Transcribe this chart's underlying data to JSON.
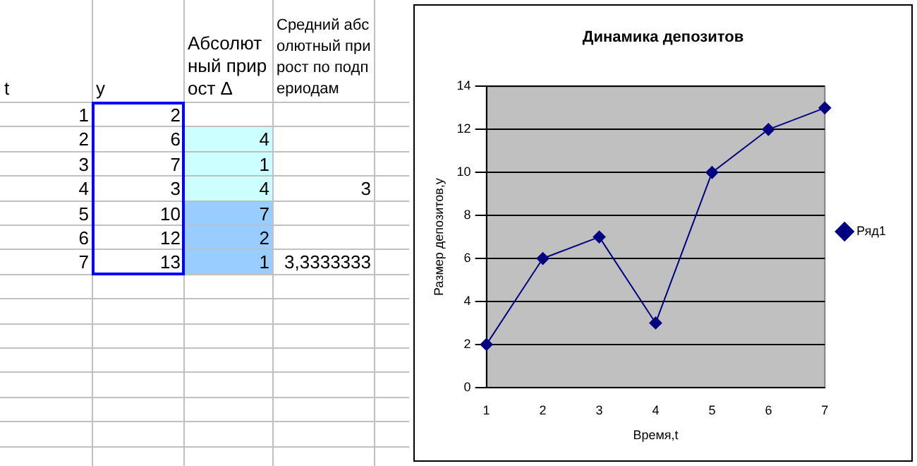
{
  "chart_data": {
    "type": "line",
    "title": "Динамика депозитов",
    "xlabel": "Время,t",
    "ylabel": "Размер депозитов,y",
    "categories": [
      "1",
      "2",
      "3",
      "4",
      "5",
      "6",
      "7"
    ],
    "series": [
      {
        "name": "Ряд1",
        "color": "#000080",
        "values": [
          2,
          6,
          7,
          3,
          10,
          12,
          13
        ]
      }
    ],
    "ylim": [
      0,
      14
    ],
    "yticks": [
      0,
      2,
      4,
      6,
      8,
      10,
      12,
      14
    ],
    "grid": "y",
    "legend": "right",
    "marker": "diamond",
    "line_style": "solid",
    "annotations": [
      "t",
      "y",
      "Абсолютный прирост Δ",
      "Средний абсолютный прирост по подпериодам",
      "2",
      "6",
      "7",
      "3",
      "10",
      "12",
      "13",
      "4",
      "1",
      "4",
      "7",
      "2",
      "1",
      "3",
      "3,3333333"
    ]
  }
}
